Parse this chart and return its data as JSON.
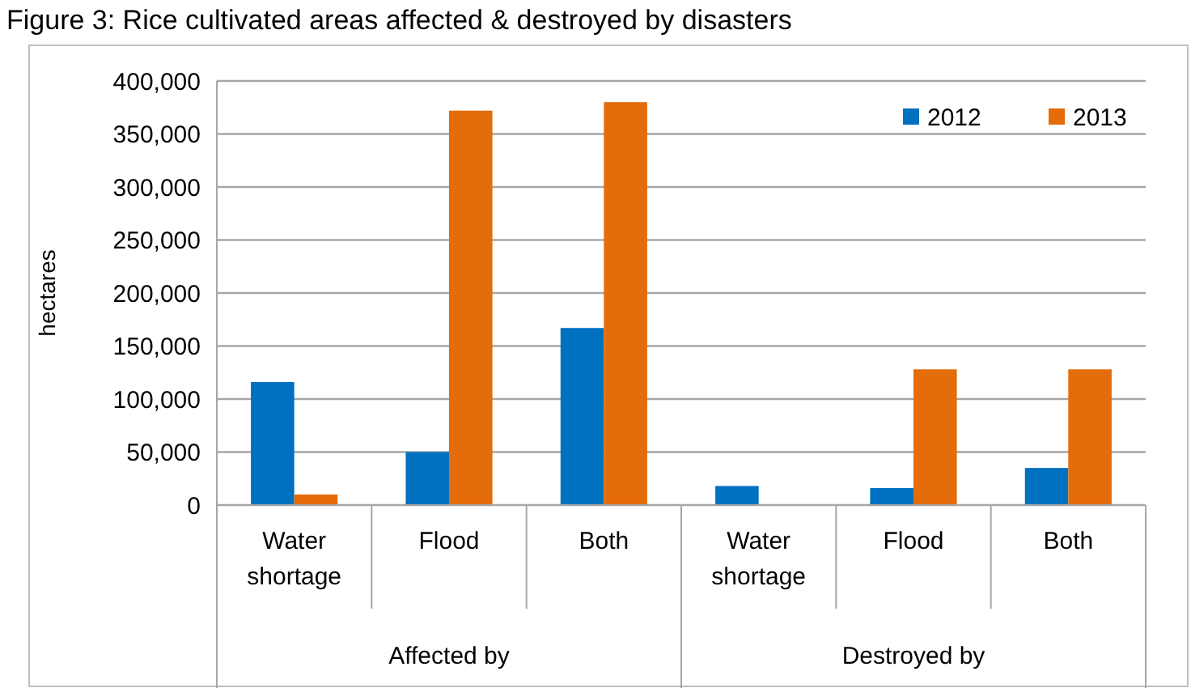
{
  "chart_data": {
    "type": "bar",
    "title": "Figure 3: Rice cultivated areas affected & destroyed by disasters",
    "ylabel": "hectares",
    "categories": [
      "Water shortage",
      "Flood",
      "Both",
      "Water shortage",
      "Flood",
      "Both"
    ],
    "series": [
      {
        "name": "2012",
        "color": "#0070c0",
        "values": [
          116000,
          50000,
          167000,
          18000,
          16000,
          35000
        ]
      },
      {
        "name": "2013",
        "color": "#e46c0a",
        "values": [
          10000,
          372000,
          380000,
          0,
          128000,
          128000
        ]
      }
    ],
    "annotations": [
      "Affected by",
      "Destroyed by"
    ],
    "ylim": [
      0,
      400000
    ],
    "yticks": [
      0,
      {
        "value": 50000,
        "label": "50,000"
      },
      {
        "value": 100000,
        "label": "100,000"
      },
      {
        "value": 150000,
        "label": "150,000"
      },
      {
        "value": 200000,
        "label": "200,000"
      },
      {
        "value": 250000,
        "label": "250,000"
      },
      {
        "value": 300000,
        "label": "300,000"
      },
      {
        "value": 350000,
        "label": "350,000"
      },
      {
        "value": 400000,
        "label": "400,000"
      }
    ],
    "grid": "y",
    "legend": "top right"
  }
}
